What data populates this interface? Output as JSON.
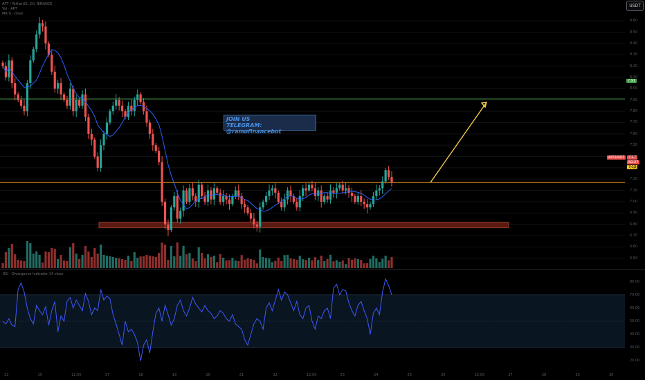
{
  "header": {
    "symbol_line": "APT / TetherUS, 2H, BINANCE",
    "volume_line": "Vol · APT",
    "ma_line": "MA 9 · close"
  },
  "currency": "USDT",
  "promo": {
    "line1": "JOIN US",
    "line2": "TELEGRAM: @ramofinancebot"
  },
  "price_tags": {
    "target": "7.91",
    "symbol": "APTUSDT",
    "last_price": "7.17",
    "countdown": "50:27",
    "ma": "7.12"
  },
  "rsi_title": "RSI · Divergence Indicator 14 close",
  "colors": {
    "up": "#26a69a",
    "down": "#ef5350",
    "ma": "#2962ff",
    "resistance": "#f5a623",
    "target_line": "#43a047",
    "support_zone": "#5a1a12",
    "arrow": "#ffd54f",
    "rsi": "#3d5afe"
  },
  "chart_data": {
    "type": "candlestick",
    "symbol": "APT/USDT",
    "timeframe": "2H",
    "exchange": "BINANCE",
    "ylim": [
      6.45,
      8.65
    ],
    "resistance_level": 7.17,
    "target_level": 7.91,
    "support_zone": [
      6.77,
      6.82
    ],
    "close_series": [
      8.2,
      8.1,
      8.25,
      8.05,
      7.95,
      7.9,
      7.85,
      7.8,
      8.05,
      8.25,
      8.35,
      8.48,
      8.58,
      8.55,
      8.4,
      8.3,
      8.15,
      8.0,
      8.05,
      7.95,
      7.9,
      7.85,
      8.0,
      7.8,
      7.9,
      7.85,
      7.95,
      7.75,
      7.6,
      7.55,
      7.4,
      7.3,
      7.5,
      7.6,
      7.7,
      7.8,
      7.85,
      7.9,
      7.85,
      7.8,
      7.75,
      7.85,
      7.8,
      7.9,
      7.95,
      7.88,
      7.8,
      7.7,
      7.6,
      7.5,
      7.45,
      7.35,
      7.0,
      6.8,
      6.75,
      6.95,
      7.05,
      6.85,
      6.92,
      7.1,
      7.0,
      7.12,
      7.05,
      7.0,
      7.15,
      7.05,
      7.0,
      7.1,
      7.02,
      7.12,
      7.08,
      7.0,
      7.05,
      7.02,
      6.98,
      7.05,
      7.1,
      7.05,
      6.98,
      6.95,
      6.9,
      6.85,
      6.8,
      6.78,
      6.95,
      7.0,
      7.05,
      7.1,
      7.12,
      7.08,
      7.0,
      6.95,
      7.02,
      7.1,
      7.05,
      7.0,
      6.95,
      7.05,
      7.12,
      7.1,
      7.15,
      7.12,
      7.05,
      7.1,
      7.0,
      7.05,
      7.02,
      7.1,
      7.08,
      7.12,
      7.15,
      7.1,
      7.12,
      7.08,
      7.05,
      7.0,
      7.05,
      7.0,
      6.98,
      6.95,
      6.98,
      7.05,
      7.1,
      7.12,
      7.18,
      7.28,
      7.22,
      7.17
    ],
    "rsi": {
      "ylim": [
        15,
        85
      ],
      "levels": [
        70,
        50,
        30
      ],
      "values": [
        50,
        48,
        52,
        47,
        46,
        74,
        79,
        72,
        60,
        52,
        48,
        62,
        58,
        55,
        61,
        47,
        58,
        65,
        42,
        54,
        50,
        65,
        68,
        60,
        66,
        62,
        58,
        71,
        65,
        55,
        60,
        58,
        74,
        66,
        69,
        67,
        55,
        48,
        40,
        32,
        50,
        42,
        44,
        40,
        34,
        20,
        32,
        36,
        26,
        42,
        56,
        60,
        50,
        62,
        55,
        47,
        52,
        62,
        66,
        58,
        54,
        60,
        68,
        63,
        60,
        57,
        62,
        58,
        56,
        52,
        54,
        58,
        56,
        52,
        50,
        55,
        48,
        46,
        44,
        36,
        32,
        40,
        48,
        52,
        50,
        44,
        60,
        64,
        58,
        66,
        74,
        66,
        72,
        70,
        64,
        58,
        65,
        55,
        52,
        60,
        62,
        50,
        44,
        54,
        52,
        58,
        60,
        52,
        75,
        78,
        70,
        74,
        73,
        64,
        58,
        54,
        62,
        65,
        58,
        52,
        40,
        56,
        60,
        55,
        72,
        82,
        77,
        70
      ]
    },
    "price_axis_labels": [
      "8.60",
      "8.50",
      "8.40",
      "8.30",
      "8.20",
      "8.10",
      "8.00",
      "7.90",
      "7.80",
      "7.70",
      "7.60",
      "7.50",
      "7.40",
      "7.30",
      "7.20",
      "7.10",
      "7.00",
      "6.90",
      "6.80",
      "6.70",
      "6.60",
      "6.50"
    ],
    "rsi_axis_labels": [
      "80.00",
      "70.00",
      "60.00",
      "50.00",
      "40.00",
      "30.00",
      "20.00"
    ],
    "time_axis_labels": [
      "13",
      "15",
      "12:00",
      "17",
      "18",
      "19",
      "20",
      "21",
      "22",
      "12:00",
      "23",
      "24",
      "25",
      "26",
      "12:00",
      "27",
      "28",
      "29",
      "30"
    ]
  }
}
